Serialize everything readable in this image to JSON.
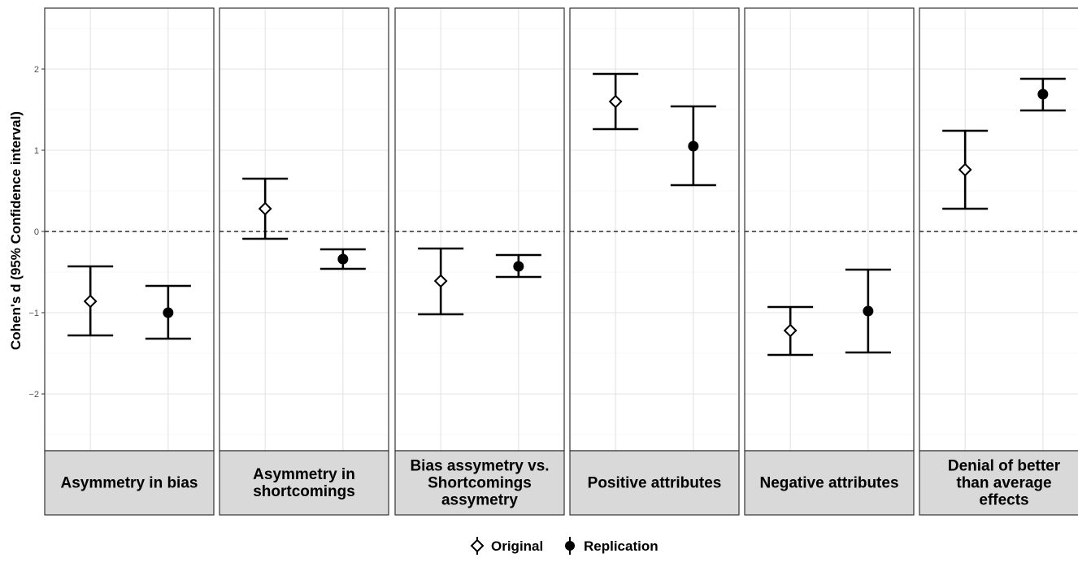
{
  "chart_data": {
    "type": "errorbar",
    "ylabel": "Cohen's d (95% Confidence interval)",
    "ylim": [
      -2.7,
      2.75
    ],
    "yticks": [
      -2,
      -1,
      0,
      1,
      2
    ],
    "ytick_labels": [
      "−2",
      "−1",
      "0",
      "1",
      "2"
    ],
    "reference_line": 0,
    "grid": true,
    "legend_position": "bottom",
    "series": [
      {
        "name": "Original",
        "marker": "open-diamond",
        "color": "#000000"
      },
      {
        "name": "Replication",
        "marker": "filled-circle",
        "color": "#000000"
      }
    ],
    "panels": [
      {
        "label_lines": [
          "Asymmetry in bias"
        ],
        "points": [
          {
            "series": "Original",
            "estimate": -0.86,
            "lower": -1.28,
            "upper": -0.43
          },
          {
            "series": "Replication",
            "estimate": -1.0,
            "lower": -1.32,
            "upper": -0.67
          }
        ]
      },
      {
        "label_lines": [
          "Asymmetry in",
          "shortcomings"
        ],
        "points": [
          {
            "series": "Original",
            "estimate": 0.28,
            "lower": -0.09,
            "upper": 0.65
          },
          {
            "series": "Replication",
            "estimate": -0.34,
            "lower": -0.46,
            "upper": -0.22
          }
        ]
      },
      {
        "label_lines": [
          "Bias assymetry vs.",
          "Shortcomings",
          "assymetry"
        ],
        "points": [
          {
            "series": "Original",
            "estimate": -0.61,
            "lower": -1.02,
            "upper": -0.21
          },
          {
            "series": "Replication",
            "estimate": -0.43,
            "lower": -0.56,
            "upper": -0.29
          }
        ]
      },
      {
        "label_lines": [
          "Positive attributes"
        ],
        "points": [
          {
            "series": "Original",
            "estimate": 1.6,
            "lower": 1.26,
            "upper": 1.94
          },
          {
            "series": "Replication",
            "estimate": 1.05,
            "lower": 0.57,
            "upper": 1.54
          }
        ]
      },
      {
        "label_lines": [
          "Negative attributes"
        ],
        "points": [
          {
            "series": "Original",
            "estimate": -1.22,
            "lower": -1.52,
            "upper": -0.93
          },
          {
            "series": "Replication",
            "estimate": -0.98,
            "lower": -1.49,
            "upper": -0.47
          }
        ]
      },
      {
        "label_lines": [
          "Denial of better",
          "than average",
          "effects"
        ],
        "points": [
          {
            "series": "Original",
            "estimate": 0.76,
            "lower": 0.28,
            "upper": 1.24
          },
          {
            "series": "Replication",
            "estimate": 1.69,
            "lower": 1.49,
            "upper": 1.88
          }
        ]
      }
    ]
  }
}
